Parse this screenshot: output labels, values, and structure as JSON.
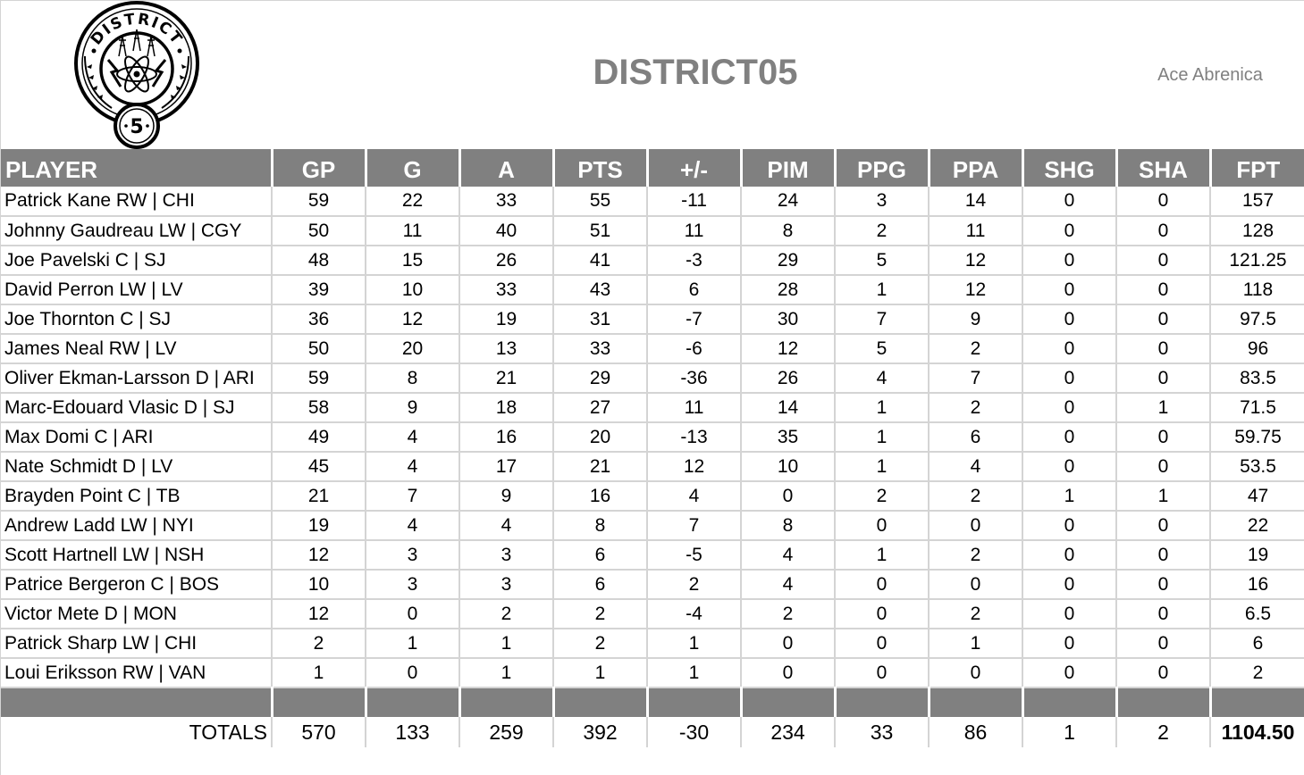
{
  "header": {
    "title": "DISTRICT05",
    "owner": "Ace Abrenica",
    "logo": {
      "icon": "district-5-seal-icon",
      "arc_text": "DISTRICT",
      "number": "5"
    }
  },
  "colors": {
    "header_bg": "#808080",
    "header_text": "#ffffff",
    "title_text": "#808080",
    "grid_line": "#d4d4d4"
  },
  "table": {
    "columns": [
      "PLAYER",
      "GP",
      "G",
      "A",
      "PTS",
      "+/-",
      "PIM",
      "PPG",
      "PPA",
      "SHG",
      "SHA",
      "FPT"
    ],
    "rows": [
      [
        "Patrick Kane RW | CHI",
        "59",
        "22",
        "33",
        "55",
        "-11",
        "24",
        "3",
        "14",
        "0",
        "0",
        "157"
      ],
      [
        "Johnny Gaudreau LW | CGY",
        "50",
        "11",
        "40",
        "51",
        "11",
        "8",
        "2",
        "11",
        "0",
        "0",
        "128"
      ],
      [
        "Joe Pavelski C | SJ",
        "48",
        "15",
        "26",
        "41",
        "-3",
        "29",
        "5",
        "12",
        "0",
        "0",
        "121.25"
      ],
      [
        "David Perron LW | LV",
        "39",
        "10",
        "33",
        "43",
        "6",
        "28",
        "1",
        "12",
        "0",
        "0",
        "118"
      ],
      [
        "Joe Thornton C | SJ",
        "36",
        "12",
        "19",
        "31",
        "-7",
        "30",
        "7",
        "9",
        "0",
        "0",
        "97.5"
      ],
      [
        "James Neal RW | LV",
        "50",
        "20",
        "13",
        "33",
        "-6",
        "12",
        "5",
        "2",
        "0",
        "0",
        "96"
      ],
      [
        "Oliver Ekman-Larsson D | ARI",
        "59",
        "8",
        "21",
        "29",
        "-36",
        "26",
        "4",
        "7",
        "0",
        "0",
        "83.5"
      ],
      [
        "Marc-Edouard Vlasic D | SJ",
        "58",
        "9",
        "18",
        "27",
        "11",
        "14",
        "1",
        "2",
        "0",
        "1",
        "71.5"
      ],
      [
        "Max Domi C | ARI",
        "49",
        "4",
        "16",
        "20",
        "-13",
        "35",
        "1",
        "6",
        "0",
        "0",
        "59.75"
      ],
      [
        "Nate Schmidt D | LV",
        "45",
        "4",
        "17",
        "21",
        "12",
        "10",
        "1",
        "4",
        "0",
        "0",
        "53.5"
      ],
      [
        "Brayden Point C | TB",
        "21",
        "7",
        "9",
        "16",
        "4",
        "0",
        "2",
        "2",
        "1",
        "1",
        "47"
      ],
      [
        "Andrew Ladd LW | NYI",
        "19",
        "4",
        "4",
        "8",
        "7",
        "8",
        "0",
        "0",
        "0",
        "0",
        "22"
      ],
      [
        "Scott Hartnell LW | NSH",
        "12",
        "3",
        "3",
        "6",
        "-5",
        "4",
        "1",
        "2",
        "0",
        "0",
        "19"
      ],
      [
        "Patrice Bergeron C | BOS",
        "10",
        "3",
        "3",
        "6",
        "2",
        "4",
        "0",
        "0",
        "0",
        "0",
        "16"
      ],
      [
        "Victor Mete D | MON",
        "12",
        "0",
        "2",
        "2",
        "-4",
        "2",
        "0",
        "2",
        "0",
        "0",
        "6.5"
      ],
      [
        "Patrick Sharp LW | CHI",
        "2",
        "1",
        "1",
        "2",
        "1",
        "0",
        "0",
        "1",
        "0",
        "0",
        "6"
      ],
      [
        "Loui Eriksson RW | VAN",
        "1",
        "0",
        "1",
        "1",
        "1",
        "0",
        "0",
        "0",
        "0",
        "0",
        "2"
      ]
    ],
    "totals": [
      "TOTALS",
      "570",
      "133",
      "259",
      "392",
      "-30",
      "234",
      "33",
      "86",
      "1",
      "2",
      "1104.50"
    ]
  }
}
